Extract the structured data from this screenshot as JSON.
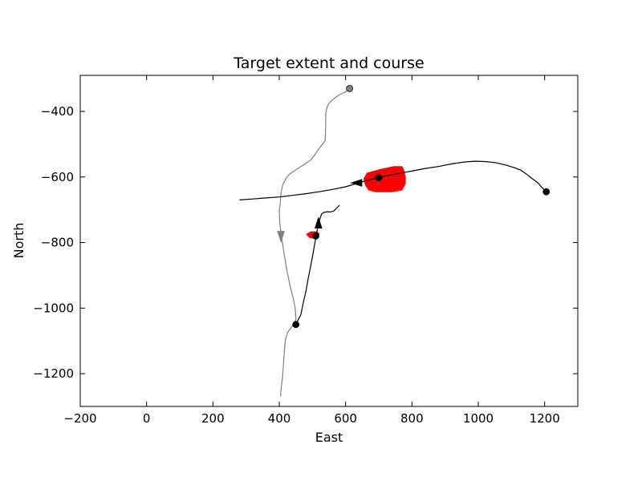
{
  "chart_data": {
    "type": "line",
    "title": "Target extent and course",
    "xlabel": "East",
    "ylabel": "North",
    "xlim": [
      -200,
      1300
    ],
    "ylim": [
      -1300,
      -290
    ],
    "xticks": [
      -200,
      0,
      200,
      400,
      600,
      800,
      1000,
      1200
    ],
    "yticks": [
      -400,
      -600,
      -800,
      -1000,
      -1200
    ],
    "grid": false,
    "series": [
      {
        "color": "#808080",
        "points": [
          [
            612,
            -330
          ],
          [
            600,
            -340
          ],
          [
            580,
            -350
          ],
          [
            560,
            -365
          ],
          [
            550,
            -375
          ],
          [
            545,
            -385
          ],
          [
            542,
            -395
          ],
          [
            540,
            -410
          ],
          [
            540,
            -440
          ],
          [
            539,
            -470
          ],
          [
            538,
            -490
          ],
          [
            530,
            -500
          ],
          [
            515,
            -520
          ],
          [
            505,
            -535
          ],
          [
            495,
            -548
          ],
          [
            470,
            -565
          ],
          [
            450,
            -578
          ],
          [
            430,
            -592
          ],
          [
            420,
            -605
          ],
          [
            410,
            -625
          ],
          [
            405,
            -650
          ],
          [
            403,
            -680
          ],
          [
            400,
            -708
          ],
          [
            402,
            -745
          ],
          [
            408,
            -790
          ],
          [
            414,
            -830
          ],
          [
            422,
            -880
          ],
          [
            432,
            -930
          ],
          [
            442,
            -970
          ],
          [
            448,
            -1000
          ],
          [
            450,
            -1035
          ],
          [
            444,
            -1050
          ],
          [
            435,
            -1060
          ],
          [
            425,
            -1075
          ],
          [
            418,
            -1100
          ],
          [
            414,
            -1150
          ],
          [
            410,
            -1210
          ],
          [
            405,
            -1250
          ],
          [
            404,
            -1270
          ]
        ],
        "start_marker": [
          612,
          -330
        ],
        "arrow": {
          "at": [
            405,
            -780
          ],
          "direction": "down"
        }
      },
      {
        "color": "#000000",
        "points": [
          [
            1205,
            -645
          ],
          [
            1190,
            -630
          ],
          [
            1180,
            -618
          ],
          [
            1165,
            -607
          ],
          [
            1150,
            -595
          ],
          [
            1130,
            -580
          ],
          [
            1110,
            -572
          ],
          [
            1080,
            -563
          ],
          [
            1050,
            -556
          ],
          [
            1020,
            -553
          ],
          [
            990,
            -552
          ],
          [
            960,
            -554
          ],
          [
            920,
            -560
          ],
          [
            880,
            -568
          ],
          [
            840,
            -574
          ],
          [
            800,
            -582
          ],
          [
            760,
            -589
          ],
          [
            720,
            -597
          ],
          [
            700,
            -602
          ],
          [
            660,
            -612
          ],
          [
            640,
            -618
          ],
          [
            600,
            -630
          ],
          [
            560,
            -638
          ],
          [
            520,
            -645
          ],
          [
            480,
            -651
          ],
          [
            440,
            -656
          ],
          [
            400,
            -661
          ],
          [
            360,
            -664
          ],
          [
            320,
            -667
          ],
          [
            280,
            -670
          ]
        ],
        "start_marker": [
          1205,
          -645
        ],
        "mid_marker": [
          700,
          -602
        ],
        "arrow": {
          "at": [
            635,
            -618
          ],
          "direction": "left"
        }
      },
      {
        "color": "#000000",
        "points": [
          [
            450,
            -1050
          ],
          [
            455,
            -1040
          ],
          [
            465,
            -1020
          ],
          [
            472,
            -985
          ],
          [
            480,
            -950
          ],
          [
            488,
            -905
          ],
          [
            496,
            -865
          ],
          [
            502,
            -832
          ],
          [
            508,
            -798
          ],
          [
            512,
            -775
          ],
          [
            515,
            -760
          ],
          [
            518,
            -745
          ],
          [
            522,
            -730
          ],
          [
            528,
            -712
          ],
          [
            535,
            -708
          ],
          [
            545,
            -706
          ],
          [
            555,
            -707
          ],
          [
            565,
            -703
          ],
          [
            572,
            -696
          ],
          [
            578,
            -690
          ],
          [
            582,
            -686
          ]
        ],
        "start_marker": [
          450,
          -1050
        ],
        "mid_marker": [
          510,
          -780
        ],
        "arrow": {
          "at": [
            518,
            -742
          ],
          "direction": "up"
        }
      }
    ],
    "extents": [
      {
        "color": "#ff0000",
        "points": [
          [
            665,
            -588
          ],
          [
            705,
            -577
          ],
          [
            745,
            -568
          ],
          [
            770,
            -568
          ],
          [
            775,
            -578
          ],
          [
            780,
            -600
          ],
          [
            780,
            -620
          ],
          [
            770,
            -640
          ],
          [
            740,
            -645
          ],
          [
            690,
            -645
          ],
          [
            670,
            -640
          ],
          [
            660,
            -625
          ],
          [
            655,
            -605
          ]
        ]
      },
      {
        "color": "#ff0000",
        "points": [
          [
            482,
            -775
          ],
          [
            495,
            -767
          ],
          [
            512,
            -767
          ],
          [
            520,
            -772
          ],
          [
            518,
            -782
          ],
          [
            508,
            -787
          ],
          [
            492,
            -785
          ]
        ]
      }
    ]
  }
}
